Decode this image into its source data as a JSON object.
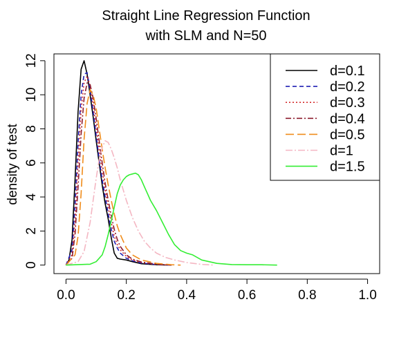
{
  "chart_data": {
    "type": "line",
    "title_line1": "Straight Line Regression Function",
    "title_line2": "with SLM and N=50",
    "xlabel": "",
    "ylabel": "density of test",
    "xlim": [
      -0.04,
      1.04
    ],
    "ylim": [
      -0.5,
      12.4
    ],
    "x_ticks": [
      "0.0",
      "0.2",
      "0.4",
      "0.6",
      "0.8",
      "1.0"
    ],
    "y_ticks": [
      "0",
      "2",
      "4",
      "6",
      "8",
      "10",
      "12"
    ],
    "legend_position": "top-right",
    "series": [
      {
        "name": "d=0.1",
        "color": "#000000",
        "dash": "",
        "x": [
          0.0,
          0.01,
          0.02,
          0.03,
          0.04,
          0.05,
          0.06,
          0.07,
          0.08,
          0.09,
          0.1,
          0.11,
          0.12,
          0.13,
          0.14,
          0.15,
          0.16,
          0.17,
          0.18,
          0.2,
          0.22,
          0.25,
          0.3,
          0.35
        ],
        "y": [
          0.0,
          0.3,
          1.5,
          5.0,
          9.0,
          11.5,
          12.0,
          11.2,
          10.0,
          8.7,
          7.3,
          6.0,
          4.7,
          3.6,
          2.7,
          1.6,
          0.7,
          0.4,
          0.35,
          0.3,
          0.2,
          0.08,
          0.02,
          0.0
        ]
      },
      {
        "name": "d=0.2",
        "color": "#1f1fb4",
        "dash": "6,4",
        "x": [
          0.0,
          0.02,
          0.03,
          0.04,
          0.05,
          0.06,
          0.07,
          0.08,
          0.09,
          0.1,
          0.11,
          0.12,
          0.13,
          0.14,
          0.15,
          0.16,
          0.17,
          0.18,
          0.2,
          0.22,
          0.25,
          0.3,
          0.35
        ],
        "y": [
          0.0,
          0.9,
          3.5,
          7.2,
          10.0,
          11.2,
          11.3,
          10.3,
          9.0,
          7.6,
          6.2,
          5.0,
          4.0,
          3.0,
          2.1,
          1.4,
          1.0,
          0.7,
          0.4,
          0.25,
          0.12,
          0.03,
          0.0
        ]
      },
      {
        "name": "d=0.3",
        "color": "#d42b2b",
        "dash": "2,3",
        "x": [
          0.0,
          0.02,
          0.03,
          0.04,
          0.05,
          0.06,
          0.07,
          0.08,
          0.09,
          0.1,
          0.11,
          0.12,
          0.13,
          0.14,
          0.15,
          0.16,
          0.17,
          0.18,
          0.2,
          0.22,
          0.25,
          0.3,
          0.35
        ],
        "y": [
          0.0,
          0.6,
          2.6,
          6.0,
          9.1,
          10.7,
          11.1,
          10.5,
          9.4,
          8.1,
          6.7,
          5.5,
          4.4,
          3.4,
          2.5,
          1.7,
          1.2,
          0.9,
          0.5,
          0.3,
          0.15,
          0.04,
          0.0
        ]
      },
      {
        "name": "d=0.4",
        "color": "#8b1a2b",
        "dash": "8,3,2,3",
        "x": [
          0.0,
          0.02,
          0.03,
          0.04,
          0.05,
          0.06,
          0.07,
          0.08,
          0.09,
          0.1,
          0.11,
          0.12,
          0.13,
          0.14,
          0.15,
          0.16,
          0.17,
          0.18,
          0.2,
          0.22,
          0.25,
          0.3,
          0.35
        ],
        "y": [
          0.0,
          0.4,
          1.8,
          4.6,
          7.7,
          9.8,
          10.7,
          10.6,
          9.8,
          8.6,
          7.3,
          6.0,
          4.8,
          3.8,
          2.9,
          2.1,
          1.5,
          1.1,
          0.6,
          0.35,
          0.18,
          0.05,
          0.0
        ]
      },
      {
        "name": "d=0.5",
        "color": "#f08c1a",
        "dash": "12,5",
        "x": [
          0.0,
          0.03,
          0.04,
          0.05,
          0.06,
          0.07,
          0.08,
          0.09,
          0.1,
          0.11,
          0.12,
          0.13,
          0.14,
          0.15,
          0.16,
          0.17,
          0.18,
          0.19,
          0.2,
          0.22,
          0.25,
          0.3,
          0.35,
          0.38
        ],
        "y": [
          0.0,
          0.6,
          1.7,
          4.2,
          7.4,
          9.5,
          10.3,
          10.0,
          9.2,
          8.0,
          6.8,
          5.7,
          4.7,
          3.8,
          3.0,
          2.3,
          1.8,
          1.4,
          1.0,
          0.6,
          0.3,
          0.1,
          0.02,
          0.0
        ]
      },
      {
        "name": "d=1",
        "color": "#f4b6c2",
        "dash": "10,3,2,3",
        "x": [
          0.0,
          0.04,
          0.06,
          0.08,
          0.09,
          0.1,
          0.11,
          0.12,
          0.13,
          0.14,
          0.15,
          0.16,
          0.17,
          0.18,
          0.19,
          0.2,
          0.22,
          0.24,
          0.26,
          0.28,
          0.3,
          0.33,
          0.36,
          0.4,
          0.45,
          0.49
        ],
        "y": [
          0.0,
          0.2,
          0.8,
          2.5,
          3.8,
          5.1,
          6.2,
          6.9,
          7.3,
          7.2,
          6.8,
          6.3,
          5.7,
          5.0,
          4.4,
          3.8,
          2.8,
          2.0,
          1.4,
          1.0,
          0.7,
          0.45,
          0.3,
          0.15,
          0.04,
          0.0
        ]
      },
      {
        "name": "d=1.5",
        "color": "#33ee33",
        "dash": "",
        "x": [
          0.0,
          0.08,
          0.1,
          0.12,
          0.13,
          0.14,
          0.15,
          0.16,
          0.17,
          0.18,
          0.19,
          0.2,
          0.21,
          0.22,
          0.23,
          0.24,
          0.25,
          0.26,
          0.27,
          0.28,
          0.3,
          0.32,
          0.34,
          0.36,
          0.38,
          0.4,
          0.42,
          0.45,
          0.5,
          0.55,
          0.6,
          0.65,
          0.7
        ],
        "y": [
          0.0,
          0.05,
          0.2,
          0.6,
          1.1,
          1.8,
          2.6,
          3.4,
          4.2,
          4.7,
          5.0,
          5.2,
          5.3,
          5.35,
          5.4,
          5.3,
          5.0,
          4.6,
          4.2,
          3.8,
          3.2,
          2.5,
          1.8,
          1.2,
          0.85,
          0.7,
          0.6,
          0.3,
          0.1,
          0.03,
          0.02,
          0.02,
          0.0
        ]
      }
    ]
  }
}
